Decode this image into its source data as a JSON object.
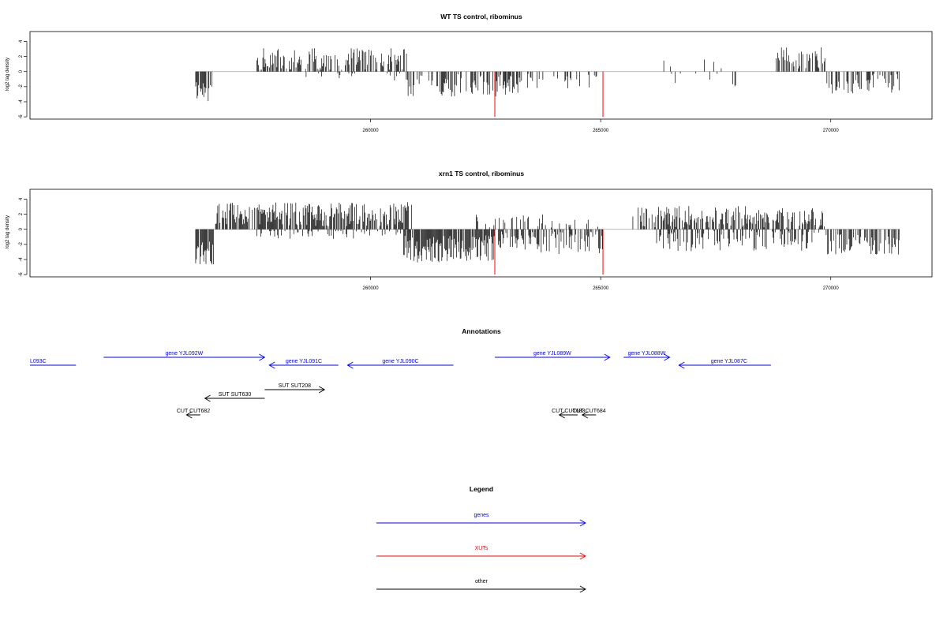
{
  "colors": {
    "genes": "#0000ff",
    "XUTs": "#ff0000",
    "other": "#000000",
    "baseline": "#a0a0a0"
  },
  "chart_data": [
    {
      "type": "bar",
      "title": "WT TS control, ribominus",
      "ylabel": "log2 tag density",
      "xlim": [
        252600,
        272200
      ],
      "ylim": [
        -6.3,
        5.3
      ],
      "yticks": [
        4,
        2,
        0,
        -2,
        -4,
        -6
      ],
      "xticks": [
        260000,
        265000,
        270000
      ],
      "generator": {
        "seed": 11,
        "regions": [
          {
            "from": 256200,
            "to": 256600,
            "sign": -1,
            "mean": 2.6,
            "spread": 1.4,
            "density": 0.75
          },
          {
            "from": 257500,
            "to": 260800,
            "sign": 1,
            "mean": 1.6,
            "spread": 1.5,
            "density": 0.6
          },
          {
            "from": 258600,
            "to": 260800,
            "sign": -1,
            "mean": 0.6,
            "spread": 0.6,
            "density": 0.12
          },
          {
            "from": 260800,
            "to": 263300,
            "sign": -1,
            "mean": 1.8,
            "spread": 1.5,
            "density": 0.55
          },
          {
            "from": 262800,
            "to": 265000,
            "sign": -1,
            "mean": 1.3,
            "spread": 1.0,
            "density": 0.25
          },
          {
            "from": 266100,
            "to": 268200,
            "sign": 1,
            "mean": 1.1,
            "spread": 1.0,
            "density": 0.06
          },
          {
            "from": 266300,
            "to": 268100,
            "sign": -1,
            "mean": 1.0,
            "spread": 1.0,
            "density": 0.06
          },
          {
            "from": 268800,
            "to": 269900,
            "sign": 1,
            "mean": 1.8,
            "spread": 1.4,
            "density": 0.5
          },
          {
            "from": 269900,
            "to": 271500,
            "sign": -1,
            "mean": 1.6,
            "spread": 1.3,
            "density": 0.45
          }
        ],
        "red_bars": [
          {
            "x": 262700,
            "y": -6
          },
          {
            "x": 265050,
            "y": -6
          }
        ]
      }
    },
    {
      "type": "bar",
      "title": "xrn1 TS control, ribominus",
      "ylabel": "log2 tag density",
      "xlim": [
        252600,
        272200
      ],
      "ylim": [
        -6.3,
        5.3
      ],
      "yticks": [
        4,
        2,
        0,
        -2,
        -4,
        -6
      ],
      "xticks": [
        260000,
        265000,
        270000
      ],
      "generator": {
        "seed": 29,
        "regions": [
          {
            "from": 256200,
            "to": 256600,
            "sign": -1,
            "mean": 3.2,
            "spread": 1.6,
            "density": 0.9
          },
          {
            "from": 256600,
            "to": 260900,
            "sign": 1,
            "mean": 2.0,
            "spread": 1.6,
            "density": 0.75
          },
          {
            "from": 257500,
            "to": 260900,
            "sign": -1,
            "mean": 0.7,
            "spread": 0.6,
            "density": 0.2
          },
          {
            "from": 260700,
            "to": 262700,
            "sign": -1,
            "mean": 2.6,
            "spread": 1.8,
            "density": 0.85
          },
          {
            "from": 262700,
            "to": 265100,
            "sign": -1,
            "mean": 1.8,
            "spread": 1.5,
            "density": 0.6
          },
          {
            "from": 262200,
            "to": 265000,
            "sign": 1,
            "mean": 1.0,
            "spread": 1.0,
            "density": 0.25
          },
          {
            "from": 265700,
            "to": 269900,
            "sign": 1,
            "mean": 1.6,
            "spread": 1.5,
            "density": 0.6
          },
          {
            "from": 266200,
            "to": 269800,
            "sign": -1,
            "mean": 1.5,
            "spread": 1.4,
            "density": 0.45
          },
          {
            "from": 269900,
            "to": 271500,
            "sign": -1,
            "mean": 2.0,
            "spread": 1.4,
            "density": 0.55
          }
        ],
        "red_bars": [
          {
            "x": 262700,
            "y": -6
          },
          {
            "x": 265050,
            "y": -6
          }
        ]
      }
    }
  ],
  "annotations": {
    "title": "Annotations",
    "features": [
      {
        "label": "L093C",
        "color": "genes",
        "from": 252600,
        "to": 253600,
        "dir": "none",
        "row": 1,
        "label_pos": "start"
      },
      {
        "label": "gene YJL092W",
        "color": "genes",
        "from": 254200,
        "to": 257700,
        "dir": "right",
        "row": 0
      },
      {
        "label": "gene YJL091C",
        "color": "genes",
        "from": 257800,
        "to": 259300,
        "dir": "left",
        "row": 1
      },
      {
        "label": "gene YJL090C",
        "color": "genes",
        "from": 259500,
        "to": 261800,
        "dir": "left",
        "row": 1
      },
      {
        "label": "gene YJL089W",
        "color": "genes",
        "from": 262700,
        "to": 265200,
        "dir": "right",
        "row": 0
      },
      {
        "label": "gene YJL088W",
        "color": "genes",
        "from": 265500,
        "to": 266500,
        "dir": "right",
        "row": 0
      },
      {
        "label": "gene YJL087C",
        "color": "genes",
        "from": 266700,
        "to": 268700,
        "dir": "left",
        "row": 1,
        "label_pos": "end"
      },
      {
        "label": "SUT SUT208",
        "color": "other",
        "from": 257700,
        "to": 259000,
        "dir": "right",
        "row": 2
      },
      {
        "label": "SUT SUT630",
        "color": "other",
        "from": 256400,
        "to": 257700,
        "dir": "left",
        "row": 3
      },
      {
        "label": "CUT CUT682",
        "color": "other",
        "from": 256000,
        "to": 256300,
        "dir": "left",
        "row": 4
      },
      {
        "label": "CUT CUT683",
        "color": "other",
        "from": 264100,
        "to": 264500,
        "dir": "left",
        "row": 4
      },
      {
        "label": "CUT CUT684",
        "color": "other",
        "from": 264600,
        "to": 264900,
        "dir": "left",
        "row": 4
      }
    ]
  },
  "legend": {
    "title": "Legend",
    "entries": [
      {
        "label": "genes",
        "color": "genes"
      },
      {
        "label": "XUTs",
        "color": "XUTs"
      },
      {
        "label": "other",
        "color": "other"
      }
    ]
  }
}
